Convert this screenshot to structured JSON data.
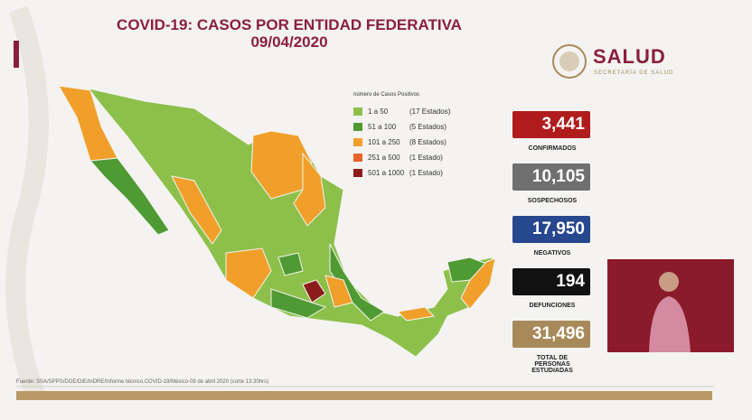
{
  "header": {
    "title": "COVID-19: CASOS POR ENTIDAD FEDERATIVA",
    "date": "09/04/2020"
  },
  "logo": {
    "name": "SALUD",
    "subtitle": "SECRETARÍA DE SALUD"
  },
  "legend": {
    "title": "número de Casos Positivos",
    "items": [
      {
        "range": "1 a 50",
        "states": "(17 Estados)",
        "color": "#8dc04a"
      },
      {
        "range": "51 a 100",
        "states": "(5 Estados)",
        "color": "#4f9a32"
      },
      {
        "range": "101 a 250",
        "states": "(8 Estados)",
        "color": "#f0a02a"
      },
      {
        "range": "251 a 500",
        "states": "(1 Estado)",
        "color": "#e8622a"
      },
      {
        "range": "501 a 1000",
        "states": "(1 Estado)",
        "color": "#8c1c1c"
      }
    ]
  },
  "stats": [
    {
      "value": "3,441",
      "label": "CONFIRMADOS",
      "color": "#b01c1c"
    },
    {
      "value": "10,105",
      "label": "SOSPECHOSOS",
      "color": "#6f6f6f"
    },
    {
      "value": "17,950",
      "label": "NEGATIVOS",
      "color": "#27478e"
    },
    {
      "value": "194",
      "label": "DEFUNCIONES",
      "color": "#111111"
    },
    {
      "value": "31,496",
      "label": "TOTAL DE PERSONAS ESTUDIADAS",
      "color": "#a88a5a"
    }
  ],
  "footer": {
    "source": "Fuente: SSA/SPPS/DGE/DIE/InDRE/Informe técnico.COVID-19/México-09 de abril 2020 (corte 13:30hrs)"
  }
}
